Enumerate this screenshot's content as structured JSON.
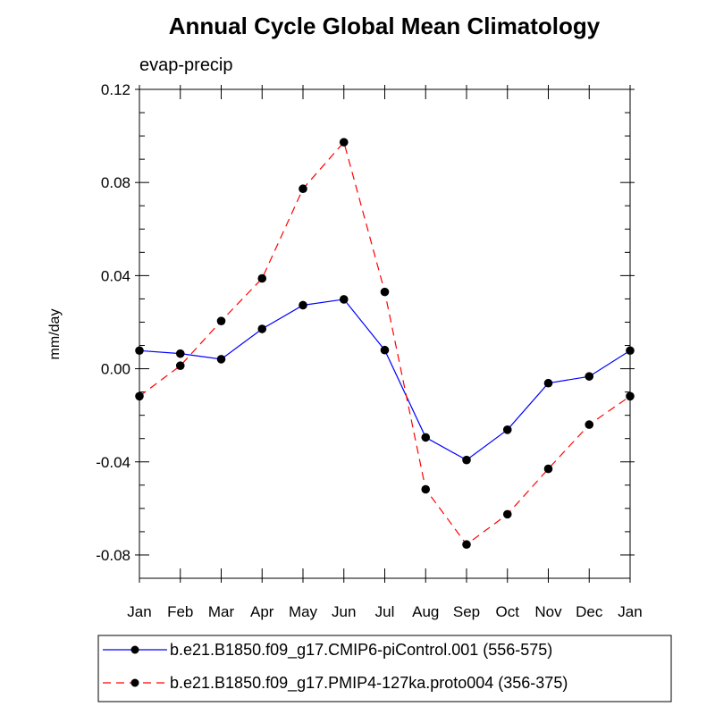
{
  "chart_data": {
    "type": "line",
    "title": "Annual Cycle Global Mean Climatology",
    "subtitle": "evap-precip",
    "xlabel": "",
    "ylabel": "mm/day",
    "categories": [
      "Jan",
      "Feb",
      "Mar",
      "Apr",
      "May",
      "Jun",
      "Jul",
      "Aug",
      "Sep",
      "Oct",
      "Nov",
      "Dec",
      "Jan"
    ],
    "ylim": [
      -0.09,
      0.12
    ],
    "yticks": [
      0.12,
      0.08,
      0.04,
      0.0,
      -0.04,
      -0.08
    ],
    "ytick_labels": [
      "0.12",
      "0.08",
      "0.04",
      "0.00",
      "-0.04",
      "-0.08"
    ],
    "legend_position": "bottom",
    "series": [
      {
        "name": "b.e21.B1850.f09_g17.CMIP6-piControl.001 (556-575)",
        "color": "#0000ff",
        "dash": "solid",
        "values": [
          0.0078,
          0.0065,
          0.0041,
          0.0171,
          0.0273,
          0.0298,
          0.008,
          -0.0295,
          -0.0392,
          -0.0262,
          -0.0062,
          -0.0033,
          0.0078
        ]
      },
      {
        "name": "b.e21.B1850.f09_g17.PMIP4-127ka.proto004 (356-375)",
        "color": "#ff0000",
        "dash": "dashed",
        "values": [
          -0.0118,
          0.0013,
          0.0205,
          0.0388,
          0.0773,
          0.0973,
          0.033,
          -0.0518,
          -0.0755,
          -0.0625,
          -0.043,
          -0.024,
          -0.0118
        ]
      }
    ]
  }
}
